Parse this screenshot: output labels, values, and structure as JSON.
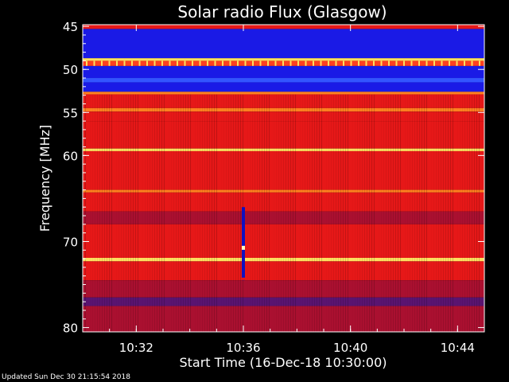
{
  "chart_data": {
    "type": "heatmap",
    "title": "Solar radio Flux (Glasgow)",
    "xlabel": "Start Time (16-Dec-18 10:30:00)",
    "ylabel": "Frequency [MHz]",
    "xticks": [
      "10:32",
      "10:36",
      "10:40",
      "10:44"
    ],
    "xtick_minutes": [
      2,
      6,
      10,
      14
    ],
    "xlim_minutes": [
      0,
      15
    ],
    "yticks": [
      45,
      50,
      55,
      60,
      70,
      80
    ],
    "ylim": [
      44.8,
      80.5
    ],
    "rows": [
      {
        "f0": 44.8,
        "f1": 45.3,
        "level": "red"
      },
      {
        "f0": 45.3,
        "f1": 48.7,
        "level": "blue"
      },
      {
        "f0": 48.7,
        "f1": 49.0,
        "level": "yellow"
      },
      {
        "f0": 49.0,
        "f1": 49.6,
        "level": "stripe"
      },
      {
        "f0": 49.6,
        "f1": 51.0,
        "level": "blue"
      },
      {
        "f0": 51.0,
        "f1": 51.5,
        "level": "lightblue"
      },
      {
        "f0": 51.5,
        "f1": 52.6,
        "level": "blue"
      },
      {
        "f0": 52.6,
        "f1": 52.9,
        "level": "orange"
      },
      {
        "f0": 52.9,
        "f1": 54.5,
        "level": "red"
      },
      {
        "f0": 54.5,
        "f1": 54.9,
        "level": "orange"
      },
      {
        "f0": 54.9,
        "f1": 56.0,
        "level": "red"
      },
      {
        "f0": 56.0,
        "f1": 59.2,
        "level": "red"
      },
      {
        "f0": 59.2,
        "f1": 59.5,
        "level": "yellow"
      },
      {
        "f0": 59.5,
        "f1": 64.0,
        "level": "red"
      },
      {
        "f0": 64.0,
        "f1": 64.3,
        "level": "orange"
      },
      {
        "f0": 64.3,
        "f1": 66.5,
        "level": "red"
      },
      {
        "f0": 66.5,
        "f1": 68.0,
        "level": "darkred"
      },
      {
        "f0": 68.0,
        "f1": 71.9,
        "level": "red"
      },
      {
        "f0": 71.9,
        "f1": 72.3,
        "level": "yellow"
      },
      {
        "f0": 72.3,
        "f1": 74.5,
        "level": "red"
      },
      {
        "f0": 74.5,
        "f1": 76.5,
        "level": "darkred"
      },
      {
        "f0": 76.5,
        "f1": 77.5,
        "level": "purple"
      },
      {
        "f0": 77.5,
        "f1": 80.5,
        "level": "darkred"
      }
    ],
    "burst": {
      "minute": 6.0,
      "f0": 66.0,
      "f1": 74.5
    }
  },
  "colors": {
    "blue": "#1a1ae6",
    "lightblue": "#3355ff",
    "red": "#e61818",
    "darkred": "#aa1030",
    "purple": "#5a1470",
    "orange": "#ff8020",
    "yellow": "#ffe060",
    "stripe": "#ff4020",
    "axis": "#ffffff"
  },
  "footer": "Updated Sun Dec 30 21:15:54 2018"
}
